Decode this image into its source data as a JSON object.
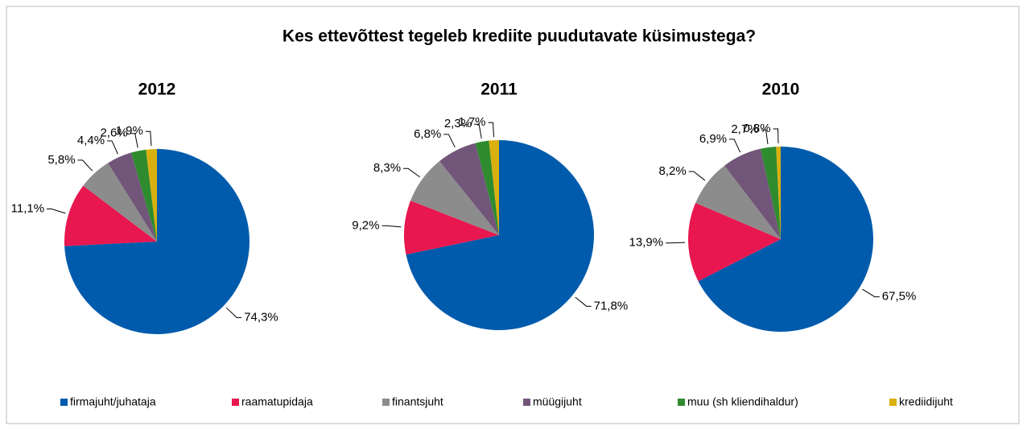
{
  "title": "Kes ettevõttest tegeleb krediite puudutavate küsimustega?",
  "legend": {
    "categories": [
      "firmajuht/juhataja",
      "raamatupidaja",
      "finantsjuht",
      "müügijuht",
      "muu (sh kliendihaldur)",
      "krediidijuht"
    ],
    "colors": [
      "#005bac",
      "#e8174f",
      "#8c8c8c",
      "#72567a",
      "#2e8b2e",
      "#d9b00f"
    ]
  },
  "chart_data": [
    {
      "type": "pie",
      "title": "2012",
      "values": [
        74.3,
        11.1,
        5.8,
        4.4,
        2.6,
        1.9
      ],
      "value_labels": [
        "74,3%",
        "11,1%",
        "5,8%",
        "4,4%",
        "2,6%",
        "1,9%"
      ]
    },
    {
      "type": "pie",
      "title": "2011",
      "values": [
        71.8,
        9.2,
        8.3,
        6.8,
        2.3,
        1.7
      ],
      "value_labels": [
        "71,8%",
        "9,2%",
        "8,3%",
        "6,8%",
        "2,3%",
        "1,7%"
      ]
    },
    {
      "type": "pie",
      "title": "2010",
      "values": [
        67.5,
        13.9,
        8.2,
        6.9,
        2.7,
        0.8
      ],
      "value_labels": [
        "67,5%",
        "13,9%",
        "8,2%",
        "6,9%",
        "2,7%",
        "0,8%"
      ]
    }
  ]
}
